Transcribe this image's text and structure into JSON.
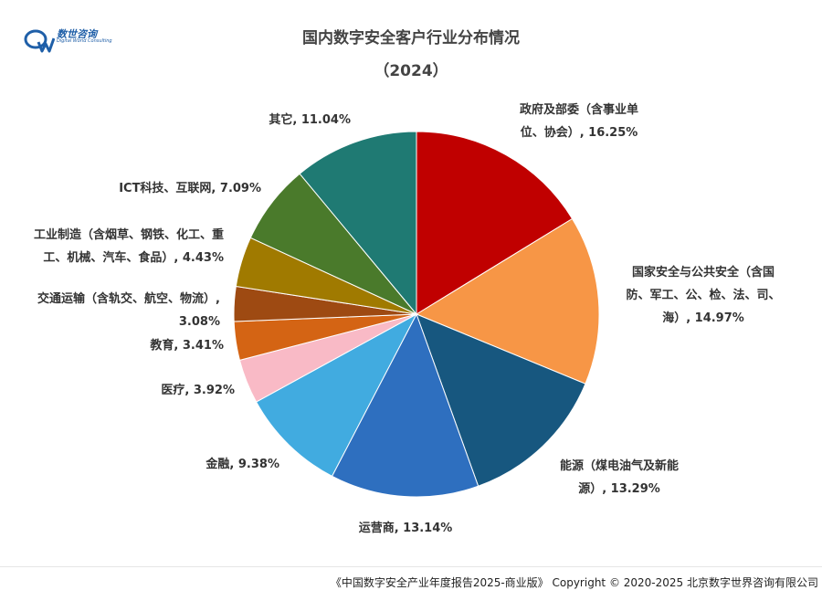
{
  "logo": {
    "name": "数世咨询",
    "sub": "Digital World Consulting"
  },
  "footer": "《中国数字安全产业年度报告2025-商业版》 Copyright © 2020-2025 北京数字世界咨询有限公司",
  "chart_data": {
    "type": "pie",
    "title": "国内数字安全客户行业分布情况",
    "subtitle": "（2024）",
    "start_angle_deg": 0,
    "direction": "clockwise",
    "slices": [
      {
        "lines": [
          "政府及部委（含事业单",
          "位、协会）, 16.25%"
        ],
        "value": 16.25,
        "color": "#c00000"
      },
      {
        "lines": [
          "国家安全与公共安全（含国",
          "防、军工、公、检、法、司、",
          "海）, 14.97%"
        ],
        "value": 14.97,
        "color": "#f79646"
      },
      {
        "lines": [
          "能源（煤电油气及新能",
          "源）, 13.29%"
        ],
        "value": 13.29,
        "color": "#17577f"
      },
      {
        "lines": [
          "运营商, 13.14%"
        ],
        "value": 13.14,
        "color": "#2e6fbf"
      },
      {
        "lines": [
          "金融, 9.38%"
        ],
        "value": 9.38,
        "color": "#41abe0"
      },
      {
        "lines": [
          "医疗, 3.92%"
        ],
        "value": 3.92,
        "color": "#f9bac6"
      },
      {
        "lines": [
          "教育, 3.41%"
        ],
        "value": 3.41,
        "color": "#d46414"
      },
      {
        "lines": [
          "交通运输（含轨交、航空、物流）,",
          "3.08%"
        ],
        "value": 3.08,
        "color": "#9e4a12"
      },
      {
        "lines": [
          "工业制造（含烟草、钢铁、化工、重",
          "工、机械、汽车、食品）, 4.43%"
        ],
        "value": 4.43,
        "color": "#a07a00"
      },
      {
        "lines": [
          "ICT科技、互联网, 7.09%"
        ],
        "value": 7.09,
        "color": "#4a7a2b"
      },
      {
        "lines": [
          "其它, 11.04%"
        ],
        "value": 11.04,
        "color": "#1f7a73"
      }
    ]
  }
}
